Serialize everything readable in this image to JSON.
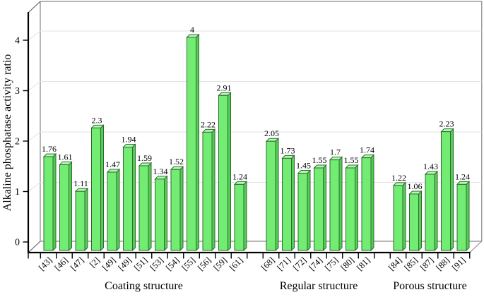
{
  "chart_data": {
    "type": "bar",
    "style": "3d-column-chart",
    "title": "",
    "xlabel": "",
    "ylabel": "Alkaline phosphatase activity ratio",
    "ylim": [
      0,
      4.5
    ],
    "yticks": [
      0,
      1,
      2,
      3,
      4
    ],
    "grid": "horizontal gridlines on back wall at 1,2,3,4",
    "legend": "none",
    "groups": [
      {
        "label": "Coating structure",
        "categories": [
          "[43]",
          "[46]",
          "[47]",
          "[2]",
          "[49]",
          "[49]",
          "[51]",
          "[53]",
          "[54]",
          "[55]",
          "[56]",
          "[59]",
          "[61]"
        ],
        "values": [
          1.76,
          1.61,
          1.11,
          2.3,
          1.47,
          1.94,
          1.59,
          1.34,
          1.52,
          4,
          2.22,
          2.91,
          1.24
        ]
      },
      {
        "label": "Regular structure",
        "categories": [
          "[68]",
          "[71]",
          "[72]",
          "[74]",
          "[75]",
          "[80]",
          "[81]"
        ],
        "values": [
          2.05,
          1.73,
          1.45,
          1.55,
          1.7,
          1.55,
          1.74
        ]
      },
      {
        "label": "Porous structure",
        "categories": [
          "[84]",
          "[85]",
          "[87]",
          "[88]",
          "[91]"
        ],
        "values": [
          1.22,
          1.06,
          1.43,
          2.23,
          1.24
        ]
      }
    ],
    "colors": {
      "bar_front": "#72ec72",
      "bar_top": "#b5f6b5",
      "bar_side": "#55cc55",
      "bar_outline": "#2f6b2f",
      "gridline": "#e3e3e3",
      "wall_edge": "#8f8f8f",
      "corner_edge": "#666666",
      "axis": "#000000",
      "label_text": "#000000",
      "background": "#ffffff"
    }
  }
}
